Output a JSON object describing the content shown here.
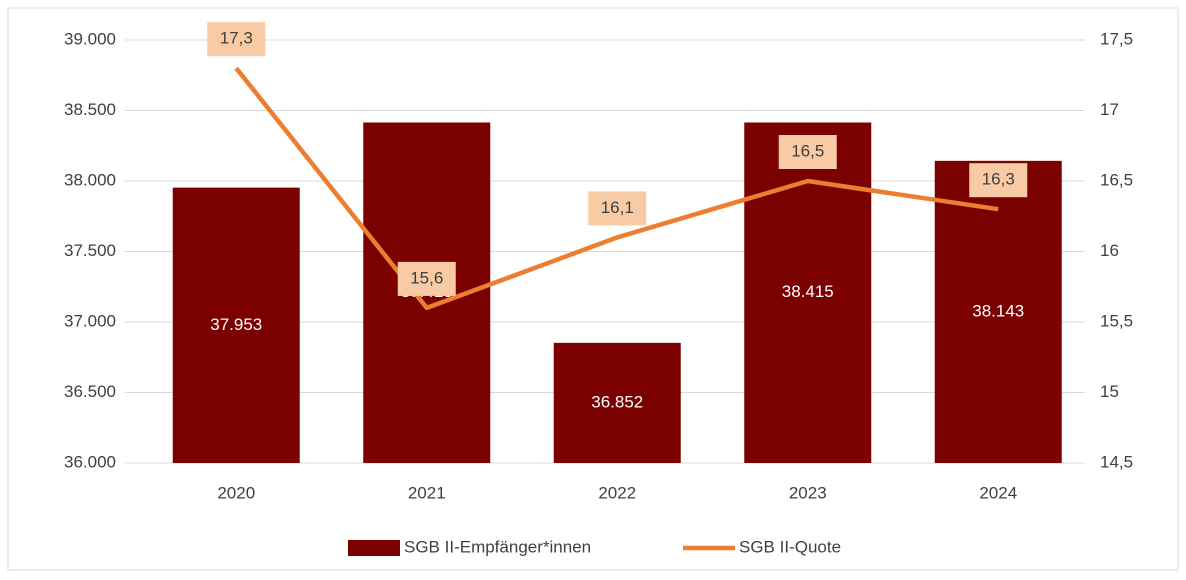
{
  "chart_data": {
    "type": "bar",
    "categories": [
      "2020",
      "2021",
      "2022",
      "2023",
      "2024"
    ],
    "series": [
      {
        "name": "SGB II-Empfänger*innen",
        "type": "bar",
        "color": "#7b0000",
        "values": [
          37953,
          38415,
          36852,
          38415,
          38143
        ],
        "value_labels": [
          "37.953",
          "38.415",
          "36.852",
          "38.415",
          "38.143"
        ]
      },
      {
        "name": "SGB II-Quote",
        "type": "line",
        "axis": "y2",
        "color": "#ed7d31",
        "values": [
          17.3,
          15.6,
          16.1,
          16.5,
          16.3
        ],
        "value_labels": [
          "17,3",
          "15,6",
          "16,1",
          "16,5",
          "16,3"
        ]
      }
    ],
    "ylim": [
      36000,
      39000
    ],
    "yticks": [
      {
        "value": 36000,
        "label": "36.000"
      },
      {
        "value": 36500,
        "label": "36.500"
      },
      {
        "value": 37000,
        "label": "37.000"
      },
      {
        "value": 37500,
        "label": "37.500"
      },
      {
        "value": 38000,
        "label": "38.000"
      },
      {
        "value": 38500,
        "label": "38.500"
      },
      {
        "value": 39000,
        "label": "39.000"
      }
    ],
    "y2lim": [
      14.5,
      17.5
    ],
    "y2ticks": [
      {
        "value": 14.5,
        "label": "14,5"
      },
      15,
      {
        "value": 15.5,
        "label": "15,5"
      },
      16,
      {
        "value": 16.5,
        "label": "16,5"
      },
      17,
      {
        "value": 17.5,
        "label": "17,5"
      }
    ],
    "grid": true,
    "legend": "bottom"
  }
}
